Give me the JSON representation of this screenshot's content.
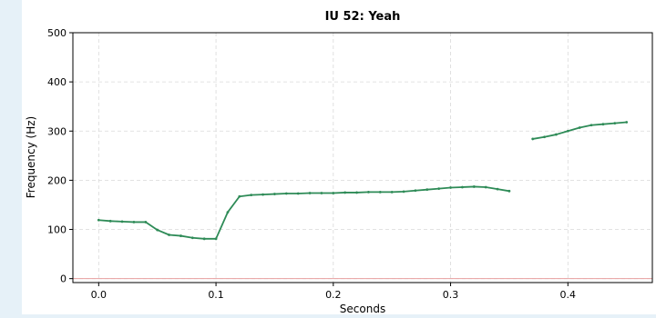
{
  "chart_data": {
    "type": "line",
    "title": "IU 52: Yeah",
    "xlabel": "Seconds",
    "ylabel": "Frequency (Hz)",
    "xlim": [
      -0.022,
      0.472
    ],
    "ylim": [
      -8,
      500
    ],
    "xticks": [
      0.0,
      0.1,
      0.2,
      0.3,
      0.4
    ],
    "xtick_labels": [
      "0.0",
      "0.1",
      "0.2",
      "0.3",
      "0.4"
    ],
    "yticks": [
      0,
      100,
      200,
      300,
      400,
      500
    ],
    "ytick_labels": [
      "0",
      "100",
      "200",
      "300",
      "400",
      "500"
    ],
    "grid": true,
    "baseline": {
      "y": 0,
      "color": "#e8a0a0"
    },
    "line_color": "#2e8b57",
    "series": [
      {
        "segments": [
          {
            "x": [
              0.0,
              0.01,
              0.02,
              0.03,
              0.04,
              0.05,
              0.06,
              0.07,
              0.08,
              0.09,
              0.1,
              0.11,
              0.12,
              0.13,
              0.14,
              0.15,
              0.16,
              0.17,
              0.18,
              0.19,
              0.2,
              0.21,
              0.22,
              0.23,
              0.24,
              0.25,
              0.26,
              0.27,
              0.28,
              0.29,
              0.3,
              0.31,
              0.32,
              0.33,
              0.34,
              0.35
            ],
            "y": [
              119,
              117,
              116,
              115,
              115,
              99,
              89,
              87,
              83,
              81,
              81,
              135,
              167,
              170,
              171,
              172,
              173,
              173,
              174,
              174,
              174,
              175,
              175,
              176,
              176,
              176,
              177,
              179,
              181,
              183,
              185,
              186,
              187,
              186,
              182,
              178
            ]
          },
          {
            "x": [
              0.37,
              0.38,
              0.39,
              0.4,
              0.41,
              0.42,
              0.43,
              0.44,
              0.45
            ],
            "y": [
              284,
              288,
              293,
              300,
              307,
              312,
              314,
              316,
              318
            ]
          }
        ]
      }
    ]
  }
}
